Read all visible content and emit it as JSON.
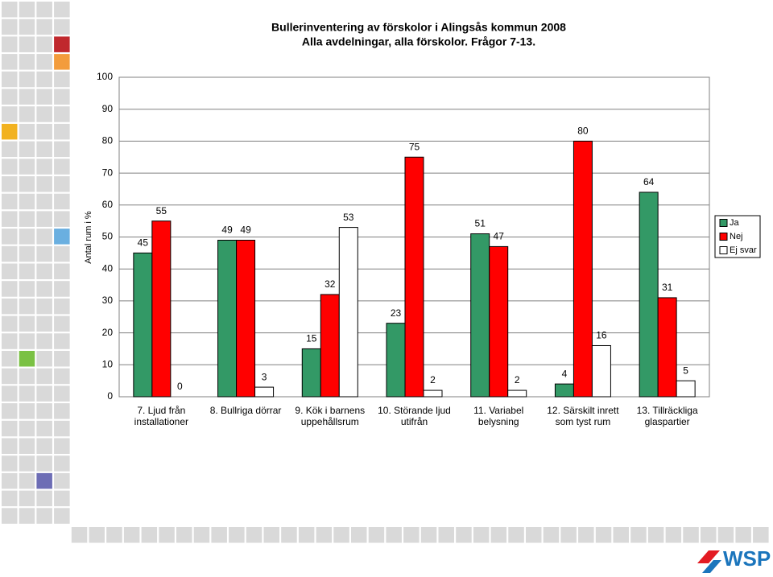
{
  "chart_data": {
    "type": "bar",
    "title": "Bullerinventering av förskolor i Alingsås kommun 2008",
    "subtitle": "Alla avdelningar, alla förskolor. Frågor 7-13.",
    "y_label": "Antal rum i %",
    "categories": [
      "7. Ljud från installationer",
      "8. Bullriga dörrar",
      "9. Kök i barnens uppehållsrum",
      "10. Störande ljud utifrån",
      "11. Variabel belysning",
      "12. Särskilt inrett som tyst rum",
      "13. Tillräckliga glaspartier"
    ],
    "series": [
      {
        "name": "Ja",
        "color": "#339966",
        "values": [
          45,
          49,
          15,
          23,
          51,
          4,
          64
        ]
      },
      {
        "name": "Nej",
        "color": "#ff0000",
        "values": [
          55,
          49,
          32,
          75,
          47,
          80,
          31
        ]
      },
      {
        "name": "Ej svar",
        "color": "#ffffff",
        "values": [
          0,
          3,
          53,
          2,
          2,
          16,
          5
        ]
      }
    ],
    "ylim": [
      0,
      100
    ],
    "yticks": [
      0,
      10,
      20,
      30,
      40,
      50,
      60,
      70,
      80,
      90,
      100
    ],
    "grid": true,
    "legend": "right"
  },
  "logo": "WSP"
}
